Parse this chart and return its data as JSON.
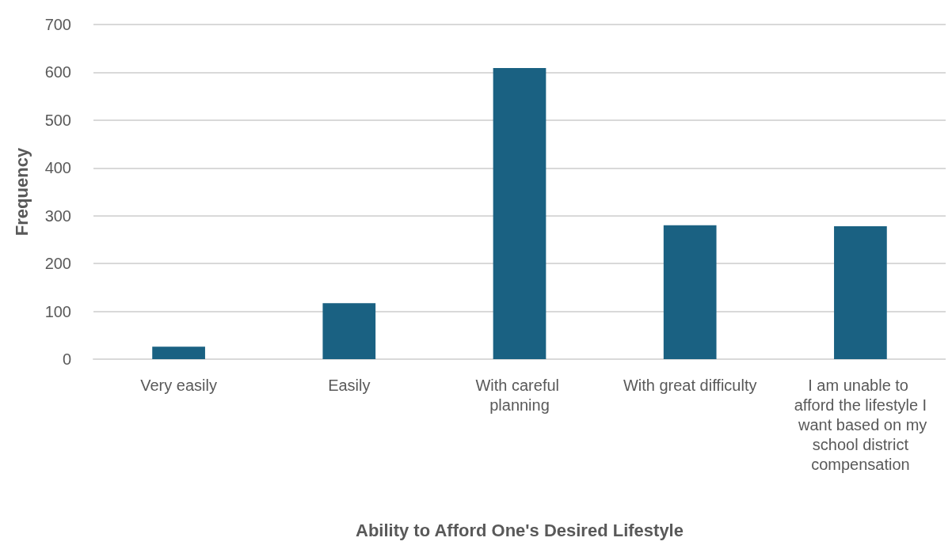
{
  "chart_data": {
    "type": "bar",
    "categories": [
      "Very easily",
      "Easily",
      "With careful planning",
      "With great difficulty",
      "I am unable to afford the lifestyle I want based on my school district compensation"
    ],
    "values": [
      26,
      117,
      609,
      280,
      278
    ],
    "color": "#1a6182",
    "xlabel": "Ability to Afford One's Desired Lifestyle",
    "ylabel": "Frequency",
    "ylim": [
      0,
      700
    ],
    "yticks": [
      0,
      100,
      200,
      300,
      400,
      500,
      600,
      700
    ],
    "grid": true
  }
}
